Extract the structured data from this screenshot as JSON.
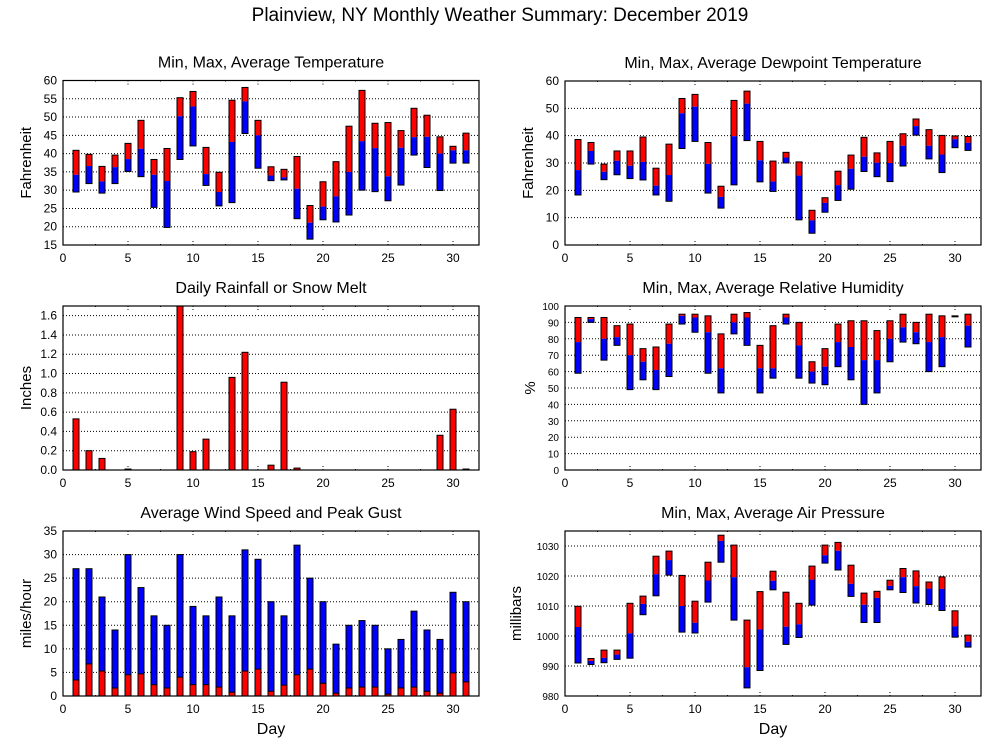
{
  "page_title": "Plainview, NY Monthly Weather Summary: December 2019",
  "colors": {
    "max_segment": "#ff0000",
    "avg_segment": "#0000ff",
    "grid": "#000000"
  },
  "chart_data": [
    {
      "id": "temperature",
      "type": "bar",
      "subtype": "floating-range",
      "title": "Min, Max, Average Temperature",
      "xlabel": "",
      "ylabel": "Fahrenheit",
      "xlim": [
        0,
        32
      ],
      "ylim": [
        15,
        60
      ],
      "xticks": [
        0,
        5,
        10,
        15,
        20,
        25,
        30
      ],
      "yticks": [
        15,
        20,
        25,
        30,
        35,
        40,
        45,
        50,
        55,
        60
      ],
      "grid": true,
      "x": [
        1,
        2,
        3,
        4,
        5,
        6,
        7,
        8,
        9,
        10,
        11,
        12,
        13,
        14,
        15,
        16,
        17,
        18,
        19,
        20,
        21,
        22,
        23,
        24,
        25,
        26,
        27,
        28,
        29,
        30,
        31
      ],
      "series": [
        {
          "name": "Min",
          "values": [
            29.5,
            31.8,
            29.2,
            31.8,
            35.1,
            33.7,
            25.3,
            19.8,
            38.4,
            42.1,
            31.3,
            25.7,
            26.6,
            45.5,
            36.0,
            32.6,
            32.8,
            22.2,
            16.6,
            21.9,
            21.3,
            23.2,
            30.0,
            29.6,
            27.1,
            31.4,
            39.6,
            36.2,
            29.9,
            37.4,
            37.4
          ]
        },
        {
          "name": "Average",
          "values": [
            34.2,
            36.6,
            32.4,
            36.3,
            38.5,
            41.3,
            34.2,
            32.5,
            50.2,
            52.9,
            34.4,
            29.5,
            43.2,
            54.3,
            45.0,
            34.0,
            33.5,
            30.4,
            21.1,
            25.5,
            28.3,
            35.0,
            43.4,
            41.5,
            33.8,
            41.6,
            44.5,
            44.6,
            40.0,
            40.9,
            40.9
          ]
        },
        {
          "name": "Max",
          "values": [
            40.9,
            39.8,
            36.5,
            39.6,
            42.8,
            49.1,
            38.4,
            41.4,
            55.3,
            57.0,
            41.7,
            34.9,
            54.6,
            58.1,
            49.1,
            36.4,
            35.7,
            39.2,
            25.8,
            32.3,
            37.8,
            47.5,
            57.3,
            48.3,
            48.5,
            46.3,
            52.4,
            50.5,
            44.6,
            42.0,
            45.6
          ]
        }
      ]
    },
    {
      "id": "dewpoint",
      "type": "bar",
      "subtype": "floating-range",
      "title": "Min, Max, Average Dewpoint Temperature",
      "xlabel": "",
      "ylabel": "Fahrenheit",
      "xlim": [
        0,
        32
      ],
      "ylim": [
        0,
        60
      ],
      "xticks": [
        0,
        5,
        10,
        15,
        20,
        25,
        30
      ],
      "yticks": [
        0,
        10,
        20,
        30,
        40,
        50,
        60
      ],
      "grid": true,
      "x": [
        1,
        2,
        3,
        4,
        5,
        6,
        7,
        8,
        9,
        10,
        11,
        12,
        13,
        14,
        15,
        16,
        17,
        18,
        19,
        20,
        21,
        22,
        23,
        24,
        25,
        26,
        27,
        28,
        29,
        30,
        31
      ],
      "series": [
        {
          "name": "Min",
          "values": [
            18.3,
            29.6,
            23.9,
            25.7,
            24.3,
            23.8,
            18.3,
            16.0,
            35.3,
            37.9,
            19.0,
            13.5,
            22.0,
            38.2,
            23.1,
            19.6,
            30.0,
            9.2,
            4.3,
            12.0,
            16.3,
            20.4,
            26.9,
            25.0,
            23.2,
            28.9,
            40.2,
            31.5,
            26.5,
            35.6,
            34.6
          ]
        },
        {
          "name": "Average",
          "values": [
            27.4,
            34.4,
            26.8,
            30.8,
            29.0,
            30.4,
            21.7,
            25.6,
            48.2,
            50.6,
            29.7,
            17.6,
            39.8,
            51.7,
            31.0,
            23.2,
            32.0,
            25.4,
            9.0,
            15.4,
            21.9,
            27.9,
            32.3,
            30.1,
            30.0,
            36.3,
            43.5,
            36.3,
            33.1,
            38.7,
            37.4
          ]
        },
        {
          "name": "Max",
          "values": [
            38.6,
            37.5,
            29.6,
            34.4,
            34.4,
            39.5,
            28.1,
            36.9,
            53.6,
            55.1,
            37.5,
            21.5,
            52.9,
            56.3,
            37.9,
            30.7,
            33.9,
            30.4,
            12.7,
            17.3,
            27.0,
            32.9,
            39.4,
            33.7,
            37.9,
            40.7,
            46.1,
            42.2,
            40.1,
            39.9,
            39.7
          ]
        }
      ]
    },
    {
      "id": "rainfall",
      "type": "bar",
      "title": "Daily Rainfall or Snow Melt",
      "xlabel": "",
      "ylabel": "Inches",
      "xlim": [
        0,
        32
      ],
      "ylim": [
        0,
        1.7
      ],
      "xticks": [
        0,
        5,
        10,
        15,
        20,
        25,
        30
      ],
      "yticks": [
        0.0,
        0.2,
        0.4,
        0.6,
        0.8,
        1.0,
        1.2,
        1.4,
        1.6
      ],
      "ytick_labels": [
        "0.0",
        "0.2",
        "0.4",
        "0.6",
        "0.8",
        "1.0",
        "1.2",
        "1.4",
        "1.6"
      ],
      "grid": true,
      "x": [
        1,
        2,
        3,
        4,
        5,
        6,
        7,
        8,
        9,
        10,
        11,
        12,
        13,
        14,
        15,
        16,
        17,
        18,
        19,
        20,
        21,
        22,
        23,
        24,
        25,
        26,
        27,
        28,
        29,
        30,
        31
      ],
      "series": [
        {
          "name": "Rainfall",
          "values": [
            0.53,
            0.2,
            0.12,
            0,
            0.01,
            0,
            0,
            0,
            1.7,
            0.19,
            0.32,
            0,
            0.96,
            1.22,
            0,
            0.05,
            0.91,
            0.02,
            0,
            0,
            0,
            0,
            0,
            0,
            0,
            0,
            0,
            0,
            0.36,
            0.63,
            0.01
          ]
        }
      ]
    },
    {
      "id": "humidity",
      "type": "bar",
      "subtype": "floating-range",
      "title": "Min, Max, Average Relative Humidity",
      "xlabel": "",
      "ylabel": "%",
      "xlim": [
        0,
        32
      ],
      "ylim": [
        0,
        100
      ],
      "xticks": [
        0,
        5,
        10,
        15,
        20,
        25,
        30
      ],
      "yticks": [
        0,
        10,
        20,
        30,
        40,
        50,
        60,
        70,
        80,
        90,
        100
      ],
      "grid": true,
      "x": [
        1,
        2,
        3,
        4,
        5,
        6,
        7,
        8,
        9,
        10,
        11,
        12,
        13,
        14,
        15,
        16,
        17,
        18,
        19,
        20,
        21,
        22,
        23,
        24,
        25,
        26,
        27,
        28,
        29,
        30,
        31
      ],
      "series": [
        {
          "name": "Min",
          "values": [
            59,
            90,
            67,
            76,
            49,
            55,
            49,
            57,
            89,
            84,
            59,
            47,
            83,
            76,
            47,
            56,
            89,
            56,
            53,
            52,
            63,
            55,
            40,
            47,
            66,
            78,
            77,
            60,
            63,
            94,
            75
          ]
        },
        {
          "name": "Average",
          "values": [
            78,
            92,
            80,
            81,
            70,
            66,
            61,
            77,
            94,
            93,
            84,
            62,
            90,
            93,
            62,
            62,
            93,
            76,
            60,
            63,
            78,
            75,
            67,
            67,
            80,
            87,
            84,
            78,
            81,
            94,
            88
          ]
        },
        {
          "name": "Max",
          "values": [
            93,
            93,
            93,
            88,
            89,
            74,
            75,
            89,
            95,
            95,
            94,
            83,
            95,
            96,
            76,
            88,
            95,
            90,
            66,
            74,
            89,
            91,
            91,
            85,
            91,
            95,
            90,
            95,
            94,
            94,
            95
          ]
        }
      ]
    },
    {
      "id": "wind",
      "type": "bar",
      "subtype": "overlay",
      "title": "Average Wind Speed and Peak Gust",
      "xlabel": "Day",
      "ylabel": "miles/hour",
      "xlim": [
        0,
        32
      ],
      "ylim": [
        0,
        35
      ],
      "xticks": [
        0,
        5,
        10,
        15,
        20,
        25,
        30
      ],
      "yticks": [
        0,
        5,
        10,
        15,
        20,
        25,
        30,
        35
      ],
      "grid": true,
      "x": [
        1,
        2,
        3,
        4,
        5,
        6,
        7,
        8,
        9,
        10,
        11,
        12,
        13,
        14,
        15,
        16,
        17,
        18,
        19,
        20,
        21,
        22,
        23,
        24,
        25,
        26,
        27,
        28,
        29,
        30,
        31
      ],
      "series": [
        {
          "name": "Peak Gust",
          "values": [
            27,
            27,
            21,
            14,
            30,
            23,
            17,
            15,
            30,
            19,
            17,
            21,
            17,
            31,
            29,
            20,
            17,
            32,
            25,
            20,
            11,
            15,
            16,
            15,
            10,
            12,
            18,
            14,
            12,
            22,
            20
          ]
        },
        {
          "name": "Average Wind Speed",
          "values": [
            3.4,
            6.8,
            5.3,
            1.7,
            4.5,
            4.7,
            2.4,
            1.7,
            4.0,
            2.4,
            2.4,
            1.9,
            0.8,
            5.3,
            5.7,
            1.0,
            2.3,
            4.5,
            5.7,
            2.7,
            0.6,
            1.7,
            1.9,
            1.9,
            0.4,
            1.7,
            1.9,
            1.0,
            0.6,
            4.9,
            3.0
          ]
        }
      ]
    },
    {
      "id": "pressure",
      "type": "bar",
      "subtype": "floating-range",
      "title": "Min, Max, Average Air Pressure",
      "xlabel": "Day",
      "ylabel": "millibars",
      "xlim": [
        0,
        32
      ],
      "ylim": [
        980,
        1035
      ],
      "xticks": [
        0,
        5,
        10,
        15,
        20,
        25,
        30
      ],
      "yticks": [
        980,
        990,
        1000,
        1010,
        1020,
        1030
      ],
      "grid": true,
      "x": [
        1,
        2,
        3,
        4,
        5,
        6,
        7,
        8,
        9,
        10,
        11,
        12,
        13,
        14,
        15,
        16,
        17,
        18,
        19,
        20,
        21,
        22,
        23,
        24,
        25,
        26,
        27,
        28,
        29,
        30,
        31
      ],
      "series": [
        {
          "name": "Min",
          "values": [
            991.0,
            990.5,
            991.1,
            992.2,
            992.6,
            1007.1,
            1013.4,
            1020.3,
            1001.3,
            1001.0,
            1011.3,
            1024.6,
            1005.3,
            982.7,
            988.5,
            1015.4,
            997.2,
            999.5,
            1010.3,
            1024.3,
            1022.0,
            1013.2,
            1004.5,
            1004.5,
            1015.4,
            1014.5,
            1011.0,
            1010.5,
            1008.5,
            999.6,
            996.3
          ]
        },
        {
          "name": "Average",
          "values": [
            1003.0,
            991.7,
            992.7,
            993.8,
            1000.9,
            1010.7,
            1020.6,
            1025.3,
            1010.0,
            1004.4,
            1018.5,
            1031.7,
            1019.6,
            989.6,
            1002.2,
            1018.4,
            1003.1,
            1003.9,
            1018.8,
            1026.9,
            1028.4,
            1017.4,
            1010.4,
            1012.7,
            1016.7,
            1019.6,
            1016.6,
            1015.8,
            1015.7,
            1003.2,
            998.1
          ]
        },
        {
          "name": "Max",
          "values": [
            1009.9,
            992.5,
            995.3,
            995.3,
            1010.9,
            1013.3,
            1026.6,
            1028.3,
            1020.2,
            1011.6,
            1024.6,
            1033.6,
            1030.3,
            1005.3,
            1014.8,
            1021.6,
            1014.6,
            1010.9,
            1023.3,
            1030.3,
            1031.2,
            1023.6,
            1014.3,
            1014.9,
            1018.6,
            1022.5,
            1021.7,
            1018.0,
            1019.7,
            1008.4,
            1000.3
          ]
        }
      ]
    }
  ]
}
